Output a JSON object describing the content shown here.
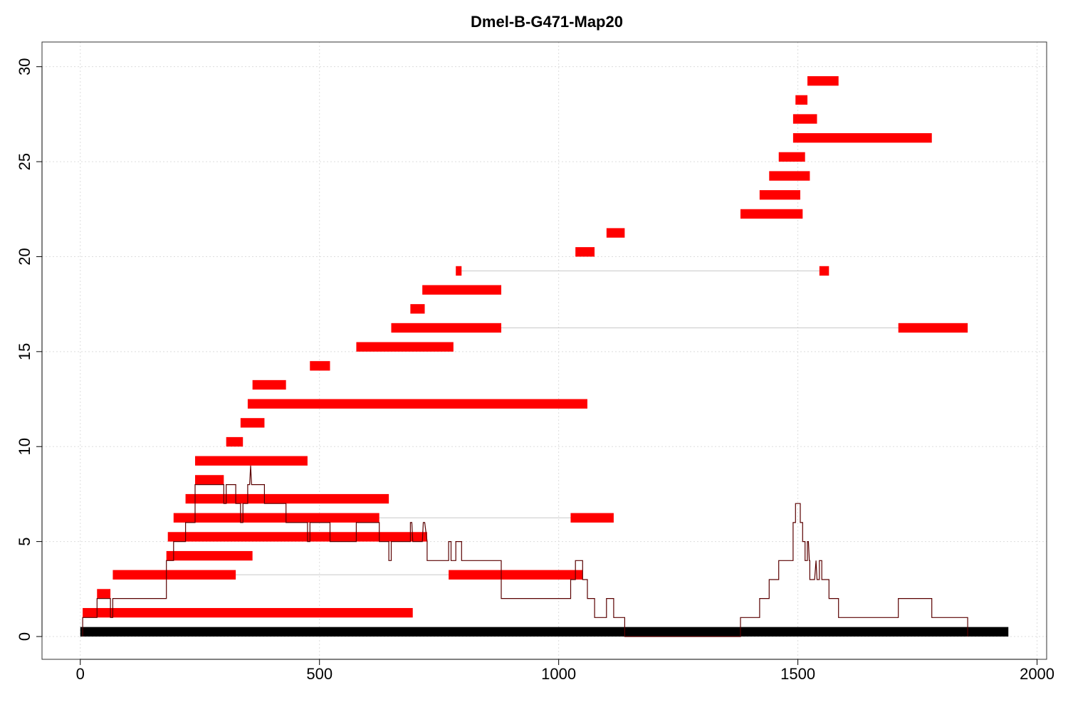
{
  "chart_data": {
    "type": "bar",
    "title": "Dmel-B-G471-Map20",
    "xlabel": "",
    "ylabel": "",
    "xlim": [
      -80,
      2020
    ],
    "ylim": [
      -1.2,
      31.3
    ],
    "x_ticks": [
      0,
      500,
      1000,
      1500,
      2000
    ],
    "y_ticks": [
      0,
      5,
      10,
      15,
      20,
      25,
      30
    ],
    "grid": true,
    "colors": {
      "segment": "#ff0000",
      "coverage": "#5a0000",
      "baseline": "#000000",
      "connector": "#c8c8c8",
      "grid": "#dddddd",
      "frame": "#333333"
    },
    "baseline": {
      "x": [
        0,
        1940
      ],
      "y": 0.25
    },
    "segments": [
      {
        "row": 1.25,
        "ranges": [
          [
            5,
            695
          ]
        ]
      },
      {
        "row": 2.25,
        "ranges": [
          [
            35,
            63
          ]
        ]
      },
      {
        "row": 3.25,
        "ranges": [
          [
            68,
            325
          ],
          [
            770,
            1050
          ]
        ]
      },
      {
        "row": 4.25,
        "ranges": [
          [
            180,
            360
          ]
        ]
      },
      {
        "row": 5.25,
        "ranges": [
          [
            183,
            725
          ]
        ]
      },
      {
        "row": 6.25,
        "ranges": [
          [
            195,
            625
          ],
          [
            1025,
            1115
          ]
        ]
      },
      {
        "row": 7.25,
        "ranges": [
          [
            220,
            645
          ]
        ]
      },
      {
        "row": 8.25,
        "ranges": [
          [
            240,
            300
          ]
        ]
      },
      {
        "row": 9.25,
        "ranges": [
          [
            240,
            475
          ]
        ]
      },
      {
        "row": 10.25,
        "ranges": [
          [
            305,
            340
          ]
        ]
      },
      {
        "row": 11.25,
        "ranges": [
          [
            335,
            385
          ]
        ]
      },
      {
        "row": 12.25,
        "ranges": [
          [
            350,
            1060
          ]
        ]
      },
      {
        "row": 13.25,
        "ranges": [
          [
            360,
            430
          ]
        ]
      },
      {
        "row": 14.25,
        "ranges": [
          [
            480,
            522
          ]
        ]
      },
      {
        "row": 15.25,
        "ranges": [
          [
            577,
            780
          ]
        ]
      },
      {
        "row": 16.25,
        "ranges": [
          [
            650,
            880
          ],
          [
            1710,
            1855
          ]
        ]
      },
      {
        "row": 17.25,
        "ranges": [
          [
            690,
            720
          ]
        ]
      },
      {
        "row": 18.25,
        "ranges": [
          [
            715,
            880
          ]
        ]
      },
      {
        "row": 19.25,
        "ranges": [
          [
            785,
            797
          ],
          [
            1545,
            1565
          ]
        ]
      },
      {
        "row": 20.25,
        "ranges": [
          [
            1035,
            1075
          ]
        ]
      },
      {
        "row": 21.25,
        "ranges": [
          [
            1100,
            1138
          ]
        ]
      },
      {
        "row": 22.25,
        "ranges": [
          [
            1380,
            1510
          ]
        ]
      },
      {
        "row": 23.25,
        "ranges": [
          [
            1420,
            1505
          ]
        ]
      },
      {
        "row": 24.25,
        "ranges": [
          [
            1440,
            1525
          ]
        ]
      },
      {
        "row": 25.25,
        "ranges": [
          [
            1460,
            1515
          ]
        ]
      },
      {
        "row": 26.25,
        "ranges": [
          [
            1490,
            1780
          ]
        ]
      },
      {
        "row": 27.25,
        "ranges": [
          [
            1490,
            1540
          ]
        ]
      },
      {
        "row": 28.25,
        "ranges": [
          [
            1495,
            1520
          ]
        ]
      },
      {
        "row": 29.25,
        "ranges": [
          [
            1520,
            1585
          ]
        ]
      }
    ],
    "coverage": [
      [
        5,
        0
      ],
      [
        5,
        1
      ],
      [
        35,
        1
      ],
      [
        35,
        2
      ],
      [
        63,
        2
      ],
      [
        63,
        1
      ],
      [
        68,
        1
      ],
      [
        68,
        2
      ],
      [
        180,
        2
      ],
      [
        180,
        4
      ],
      [
        195,
        4
      ],
      [
        195,
        5
      ],
      [
        220,
        5
      ],
      [
        220,
        6
      ],
      [
        240,
        6
      ],
      [
        240,
        8
      ],
      [
        300,
        8
      ],
      [
        300,
        7
      ],
      [
        305,
        7
      ],
      [
        305,
        8
      ],
      [
        325,
        8
      ],
      [
        325,
        7
      ],
      [
        335,
        7
      ],
      [
        335,
        6
      ],
      [
        340,
        6
      ],
      [
        340,
        7
      ],
      [
        350,
        7
      ],
      [
        350,
        8
      ],
      [
        354,
        8
      ],
      [
        356,
        9
      ],
      [
        358,
        8
      ],
      [
        385,
        8
      ],
      [
        385,
        7
      ],
      [
        430,
        7
      ],
      [
        430,
        6
      ],
      [
        475,
        6
      ],
      [
        475,
        5
      ],
      [
        480,
        5
      ],
      [
        480,
        6
      ],
      [
        522,
        6
      ],
      [
        522,
        5
      ],
      [
        577,
        5
      ],
      [
        577,
        6
      ],
      [
        625,
        6
      ],
      [
        625,
        5
      ],
      [
        645,
        5
      ],
      [
        645,
        4
      ],
      [
        650,
        4
      ],
      [
        650,
        5
      ],
      [
        690,
        5
      ],
      [
        690,
        6
      ],
      [
        693,
        6
      ],
      [
        695,
        5
      ],
      [
        715,
        5
      ],
      [
        717,
        6
      ],
      [
        720,
        6
      ],
      [
        725,
        5
      ],
      [
        725,
        4
      ],
      [
        770,
        4
      ],
      [
        770,
        5
      ],
      [
        775,
        5
      ],
      [
        775,
        4
      ],
      [
        785,
        4
      ],
      [
        785,
        5
      ],
      [
        797,
        5
      ],
      [
        797,
        4
      ],
      [
        880,
        4
      ],
      [
        880,
        2
      ],
      [
        1025,
        2
      ],
      [
        1025,
        3
      ],
      [
        1035,
        3
      ],
      [
        1035,
        4
      ],
      [
        1050,
        4
      ],
      [
        1050,
        3
      ],
      [
        1060,
        3
      ],
      [
        1060,
        2
      ],
      [
        1075,
        2
      ],
      [
        1075,
        1
      ],
      [
        1100,
        1
      ],
      [
        1100,
        2
      ],
      [
        1115,
        2
      ],
      [
        1115,
        1
      ],
      [
        1138,
        1
      ],
      [
        1138,
        0
      ],
      [
        1380,
        0
      ],
      [
        1380,
        1
      ],
      [
        1420,
        1
      ],
      [
        1420,
        2
      ],
      [
        1440,
        2
      ],
      [
        1440,
        3
      ],
      [
        1460,
        3
      ],
      [
        1460,
        4
      ],
      [
        1490,
        4
      ],
      [
        1490,
        6
      ],
      [
        1495,
        6
      ],
      [
        1495,
        7
      ],
      [
        1505,
        7
      ],
      [
        1505,
        6
      ],
      [
        1510,
        6
      ],
      [
        1510,
        5
      ],
      [
        1515,
        5
      ],
      [
        1515,
        4
      ],
      [
        1520,
        4
      ],
      [
        1520,
        5
      ],
      [
        1522,
        5
      ],
      [
        1524,
        4
      ],
      [
        1525,
        4
      ],
      [
        1525,
        3
      ],
      [
        1535,
        3
      ],
      [
        1538,
        4
      ],
      [
        1540,
        3
      ],
      [
        1545,
        3
      ],
      [
        1545,
        4
      ],
      [
        1550,
        4
      ],
      [
        1550,
        3
      ],
      [
        1565,
        3
      ],
      [
        1565,
        2
      ],
      [
        1585,
        2
      ],
      [
        1585,
        1
      ],
      [
        1710,
        1
      ],
      [
        1710,
        2
      ],
      [
        1780,
        2
      ],
      [
        1780,
        1
      ],
      [
        1855,
        1
      ],
      [
        1855,
        0
      ]
    ]
  }
}
